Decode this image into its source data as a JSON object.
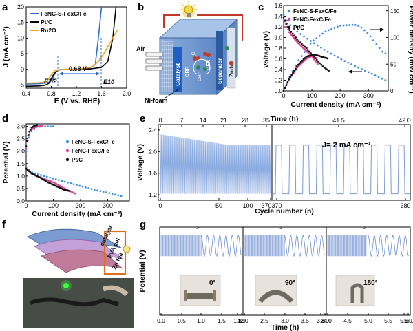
{
  "panels": {
    "a": {
      "label": "a",
      "chart_data": {
        "type": "line",
        "xlabel": "E (V vs. RHE)",
        "ylabel": "J (mA cm⁻²)",
        "xlim": [
          0.4,
          2.0
        ],
        "ylim": [
          -6,
          20
        ],
        "xticks": [
          "0.4",
          "0.8",
          "1.2",
          "1.6",
          "2.0"
        ],
        "yticks": [
          "-5",
          "0",
          "5",
          "10",
          "15",
          "20"
        ],
        "annotations": [
          "0.68 V",
          "E1/2",
          "E10"
        ],
        "series": [
          {
            "name": "FeNC-S-FexC/Fe",
            "color": "#2f6fd1",
            "x": [
              0.4,
              0.6,
              0.7,
              0.78,
              0.82,
              0.86,
              0.9,
              1.0,
              1.2,
              1.4,
              1.5,
              1.55,
              1.6
            ],
            "y": [
              -4.7,
              -4.6,
              -4.4,
              -4.0,
              -3.0,
              -1.3,
              -0.2,
              0.0,
              0.05,
              0.3,
              1.5,
              10,
              20
            ]
          },
          {
            "name": "Pt/C",
            "color": "#000000",
            "x": [
              0.4,
              0.6,
              0.7,
              0.76,
              0.8,
              0.84,
              0.9,
              1.0,
              1.4,
              1.6,
              1.7,
              1.78,
              1.83
            ],
            "y": [
              -5.4,
              -5.3,
              -5.1,
              -4.5,
              -3.0,
              -1.5,
              -0.3,
              0.0,
              0.1,
              0.6,
              2.5,
              10,
              20
            ]
          },
          {
            "name": "Ru2O",
            "color": "#f0a020",
            "x": [
              0.4,
              0.6,
              0.7,
              0.74,
              0.8,
              0.85,
              1.0,
              1.3,
              1.45,
              1.55,
              1.65,
              1.75,
              1.85
            ],
            "y": [
              -4.4,
              -4.3,
              -4.0,
              -3.5,
              -1.8,
              -0.5,
              0.0,
              0.2,
              0.8,
              2.5,
              5.5,
              9,
              12.5
            ]
          }
        ]
      }
    },
    "b": {
      "label": "b",
      "labels": {
        "air": "Air",
        "catalyst": "Catalyst",
        "orr": "ORR",
        "oer": "OER",
        "o2": "O₂",
        "oh": "OH⁻",
        "separator": "Separator",
        "znfoil": "Zn-foil",
        "nifoam": "Ni-foam"
      }
    },
    "c": {
      "label": "c",
      "chart_data": {
        "type": "scatter",
        "xlabel": "Current density (mA cm⁻²)",
        "ylabel": "Voltage (V)",
        "y2label": "Power density (mW cm⁻²)",
        "xlim": [
          0,
          370
        ],
        "ylim": [
          0,
          1.6
        ],
        "y2lim": [
          0,
          160
        ],
        "xticks": [
          "0",
          "100",
          "200",
          "300"
        ],
        "yticks": [
          "0.0",
          "0.2",
          "0.4",
          "0.6",
          "0.8",
          "1.0",
          "1.2",
          "1.4",
          "1.6"
        ],
        "y2ticks": [
          "0",
          "50",
          "100",
          "150"
        ],
        "series": [
          {
            "name": "FeNC-S-FexC/Fe",
            "color": "#3b8ee8",
            "voltage_x": [
              0,
              20,
              50,
              100,
              150,
              200,
              250,
              300,
              340,
              360
            ],
            "voltage_y": [
              1.42,
              1.25,
              1.1,
              0.92,
              0.75,
              0.6,
              0.47,
              0.35,
              0.25,
              0.2
            ],
            "power_x": [
              0,
              20,
              50,
              100,
              150,
              200,
              250,
              270,
              300,
              330,
              350,
              360
            ],
            "power_y": [
              0,
              25,
              55,
              92,
              112,
              122,
              124,
              121,
              107,
              86,
              73,
              70
            ]
          },
          {
            "name": "FeNC-FexC/Fe",
            "color": "#e0409a",
            "voltage_x": [
              0,
              20,
              50,
              80,
              100,
              120
            ],
            "voltage_y": [
              1.35,
              1.1,
              0.9,
              0.75,
              0.65,
              0.5
            ],
            "power_x": [
              0,
              20,
              50,
              80,
              100,
              120
            ],
            "power_y": [
              0,
              22,
              45,
              60,
              65,
              60
            ]
          },
          {
            "name": "Pt/C",
            "color": "#111111",
            "voltage_x": [
              0,
              20,
              50,
              80,
              110,
              140,
              160
            ],
            "voltage_y": [
              1.38,
              1.15,
              0.95,
              0.8,
              0.62,
              0.45,
              0.38
            ],
            "power_x": [
              0,
              20,
              50,
              80,
              110,
              140,
              160
            ],
            "power_y": [
              0,
              23,
              48,
              64,
              68,
              63,
              60
            ]
          }
        ]
      }
    },
    "d": {
      "label": "d",
      "chart_data": {
        "type": "scatter",
        "xlabel": "Current density (mA cm⁻²)",
        "ylabel": "Potential (V)",
        "xlim": [
          0,
          380
        ],
        "ylim": [
          0,
          3.1
        ],
        "xticks": [
          "0",
          "100",
          "200",
          "300"
        ],
        "yticks": [
          "0.0",
          "0.5",
          "1.0",
          "1.5",
          "2.0",
          "2.5",
          "3.0"
        ],
        "series": [
          {
            "name": "FeNC-S-FexC/Fe",
            "color": "#3b8ee8",
            "discharge_x": [
              0,
              20,
              50,
              100,
              150,
              200,
              250,
              300,
              350
            ],
            "discharge_y": [
              1.35,
              1.15,
              1.05,
              0.9,
              0.75,
              0.6,
              0.45,
              0.33,
              0.2
            ],
            "charge_x": [
              0,
              10,
              20,
              40,
              70,
              100
            ],
            "charge_y": [
              2.0,
              2.55,
              2.8,
              2.98,
              3.0,
              3.0
            ]
          },
          {
            "name": "FeNC-FexC/Fe",
            "color": "#e0409a",
            "discharge_x": [
              0,
              20,
              50,
              100,
              150,
              180
            ],
            "discharge_y": [
              1.3,
              1.1,
              0.95,
              0.75,
              0.45,
              0.3
            ],
            "charge_x": [
              0,
              10,
              20,
              40,
              60
            ],
            "charge_y": [
              2.1,
              2.65,
              2.88,
              3.0,
              3.02
            ]
          },
          {
            "name": "Pt/C",
            "color": "#111111",
            "discharge_x": [
              0,
              20,
              50,
              80,
              110,
              140,
              160
            ],
            "discharge_y": [
              1.3,
              1.1,
              0.95,
              0.75,
              0.6,
              0.45,
              0.4
            ],
            "charge_x": [
              0,
              10,
              20,
              30,
              40
            ],
            "charge_y": [
              2.2,
              2.75,
              2.95,
              3.02,
              3.05
            ]
          }
        ]
      }
    },
    "e": {
      "label": "e",
      "annotation": "J= 2 mA cm⁻¹",
      "chart_data": {
        "type": "line",
        "xlabel": "Cycle number (n)",
        "x2label": "Time (h)",
        "ylabel": "Voltage (V)",
        "ylim": [
          1.1,
          2.5
        ],
        "yticks": [
          "1.2",
          "1.6",
          "2.0",
          "2.4"
        ],
        "segment1_xticks": [
          "0",
          "50",
          "100",
          "370"
        ],
        "segment2_xticks": [
          "370",
          "380"
        ],
        "segment1_top_ticks": [
          "0",
          "7",
          "14",
          "21",
          "28",
          "35"
        ],
        "segment2_top_ticks": [
          "41.5",
          "42.0"
        ],
        "segment1_cycles": 370,
        "segment2_cycles": 10,
        "charge_voltage_start": 2.32,
        "charge_voltage_end": 2.12,
        "discharge_voltage": 1.22
      }
    },
    "f": {
      "label": "f",
      "layers": {
        "catalyst": "catalyst",
        "pva": "PVA gel",
        "znfoil": "Zn foil"
      }
    },
    "g": {
      "label": "g",
      "chart_data": {
        "type": "line",
        "xlabel": "Time (h)",
        "ylabel": "Potential (V)",
        "xticks": [
          "0.0",
          "0.5",
          "1.0",
          "1.5",
          "1.8",
          "1.9",
          "2.0",
          "2.5",
          "3.0",
          "3.5",
          "3.8",
          "3.9",
          "4.0",
          "4.5",
          "5.0",
          "5.5",
          "5.8",
          "5.9",
          "6.0"
        ],
        "bend_angles": [
          "0°",
          "90°",
          "180°"
        ],
        "charge_voltage": 2.0,
        "discharge_voltage": 1.2
      }
    }
  }
}
